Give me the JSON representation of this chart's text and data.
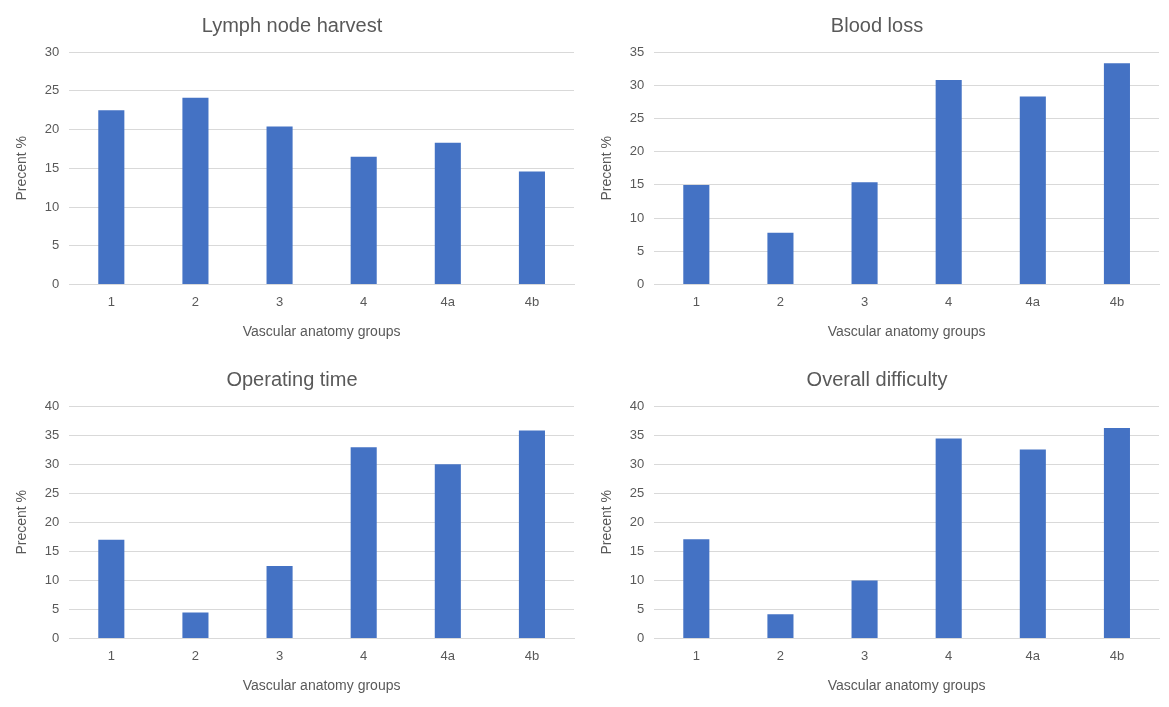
{
  "chart_data": [
    {
      "type": "bar",
      "title": "Lymph node harvest",
      "xlabel": "Vascular anatomy groups",
      "ylabel": "Precent %",
      "categories": [
        "1",
        "2",
        "3",
        "4",
        "4a",
        "4b"
      ],
      "values": [
        22.5,
        24.1,
        20.4,
        16.5,
        18.3,
        14.6
      ],
      "color": "#4472c4",
      "ylim": [
        0,
        30
      ],
      "yticks": [
        0,
        5,
        10,
        15,
        20,
        25,
        30
      ],
      "grid": "y",
      "legend": false
    },
    {
      "type": "bar",
      "title": "Blood loss",
      "xlabel": "Vascular anatomy groups",
      "ylabel": "Precent %",
      "categories": [
        "1",
        "2",
        "3",
        "4",
        "4a",
        "4b"
      ],
      "values": [
        15,
        7.8,
        15.4,
        30.8,
        28.3,
        33.3
      ],
      "color": "#4472c4",
      "ylim": [
        0,
        35
      ],
      "yticks": [
        0,
        5,
        10,
        15,
        20,
        25,
        30,
        35
      ],
      "grid": "y",
      "legend": false
    },
    {
      "type": "bar",
      "title": "Operating time",
      "xlabel": "Vascular anatomy groups",
      "ylabel": "Precent %",
      "categories": [
        "1",
        "2",
        "3",
        "4",
        "4a",
        "4b"
      ],
      "values": [
        17,
        4.5,
        12.5,
        32.9,
        30,
        35.8
      ],
      "color": "#4472c4",
      "ylim": [
        0,
        40
      ],
      "yticks": [
        0,
        5,
        10,
        15,
        20,
        25,
        30,
        35,
        40
      ],
      "grid": "y",
      "legend": false
    },
    {
      "type": "bar",
      "title": "Overall difficulty",
      "xlabel": "Vascular anatomy groups",
      "ylabel": "Precent %",
      "categories": [
        "1",
        "2",
        "3",
        "4",
        "4a",
        "4b"
      ],
      "values": [
        17.1,
        4.2,
        10,
        34.4,
        32.5,
        36.2
      ],
      "color": "#4472c4",
      "ylim": [
        0,
        40
      ],
      "yticks": [
        0,
        5,
        10,
        15,
        20,
        25,
        30,
        35,
        40
      ],
      "grid": "y",
      "legend": false
    }
  ]
}
